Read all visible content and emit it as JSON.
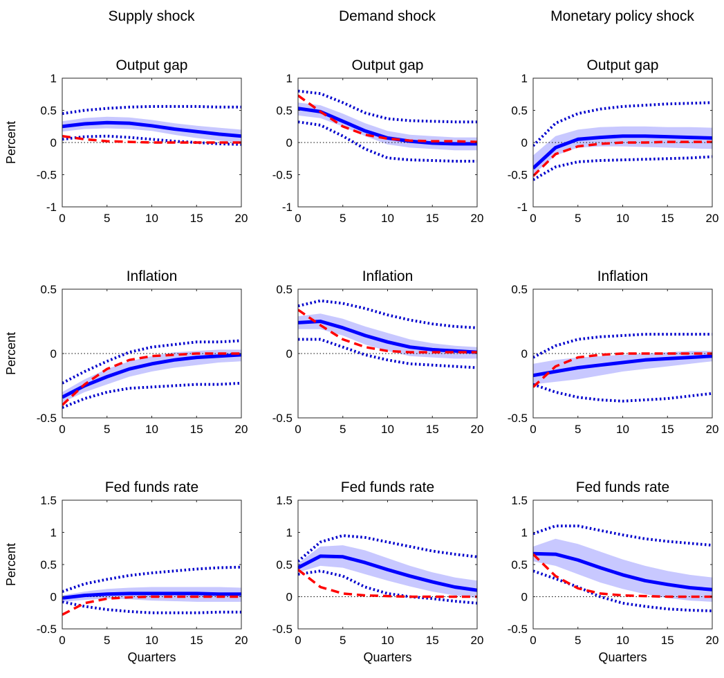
{
  "column_titles": [
    "Supply shock",
    "Demand shock",
    "Monetary policy shock"
  ],
  "colors": {
    "median": "#0000ff",
    "band_fill": "#c8c8ff",
    "dotted_band": "#0000cc",
    "model_response": "#ff0000",
    "zero_line": "#000000"
  },
  "chart_data": [
    {
      "type": "line",
      "title": "Output gap",
      "column": "Supply shock",
      "xlabel": "",
      "ylabel": "Percent",
      "xlim": [
        0,
        20
      ],
      "ylim": [
        -1,
        1
      ],
      "xticks": [
        0,
        5,
        10,
        15,
        20
      ],
      "yticks": [
        -1,
        -0.5,
        0,
        0.5,
        1
      ],
      "x": [
        0,
        2.5,
        5,
        7.5,
        10,
        12.5,
        15,
        17.5,
        20
      ],
      "series": [
        {
          "role": "band_upper",
          "values": [
            0.33,
            0.38,
            0.4,
            0.39,
            0.35,
            0.3,
            0.26,
            0.23,
            0.2
          ]
        },
        {
          "role": "band_lower",
          "values": [
            0.17,
            0.21,
            0.22,
            0.21,
            0.18,
            0.12,
            0.07,
            0.03,
            0.0
          ]
        },
        {
          "role": "median",
          "values": [
            0.25,
            0.29,
            0.31,
            0.3,
            0.26,
            0.21,
            0.17,
            0.13,
            0.1
          ]
        },
        {
          "role": "dotted_upper",
          "values": [
            0.45,
            0.5,
            0.53,
            0.55,
            0.56,
            0.56,
            0.56,
            0.55,
            0.55
          ]
        },
        {
          "role": "dotted_lower",
          "values": [
            0.05,
            0.09,
            0.1,
            0.08,
            0.05,
            0.02,
            0.0,
            -0.02,
            -0.03
          ]
        },
        {
          "role": "model_response",
          "values": [
            0.1,
            0.05,
            0.02,
            0.01,
            0.0,
            0.0,
            0.0,
            0.0,
            0.0
          ]
        }
      ]
    },
    {
      "type": "line",
      "title": "Output gap",
      "column": "Demand shock",
      "xlabel": "",
      "ylabel": "",
      "xlim": [
        0,
        20
      ],
      "ylim": [
        -1,
        1
      ],
      "xticks": [
        0,
        5,
        10,
        15,
        20
      ],
      "yticks": [
        -1,
        -0.5,
        0,
        0.5,
        1
      ],
      "x": [
        0,
        2.5,
        5,
        7.5,
        10,
        12.5,
        15,
        17.5,
        20
      ],
      "series": [
        {
          "role": "band_upper",
          "values": [
            0.62,
            0.58,
            0.45,
            0.3,
            0.18,
            0.12,
            0.1,
            0.08,
            0.08
          ]
        },
        {
          "role": "band_lower",
          "values": [
            0.42,
            0.38,
            0.25,
            0.1,
            -0.03,
            -0.08,
            -0.1,
            -0.12,
            -0.12
          ]
        },
        {
          "role": "median",
          "values": [
            0.53,
            0.48,
            0.33,
            0.18,
            0.07,
            0.02,
            -0.01,
            -0.02,
            -0.02
          ]
        },
        {
          "role": "dotted_upper",
          "values": [
            0.8,
            0.76,
            0.62,
            0.46,
            0.37,
            0.34,
            0.33,
            0.32,
            0.32
          ]
        },
        {
          "role": "dotted_lower",
          "values": [
            0.32,
            0.27,
            0.1,
            -0.1,
            -0.24,
            -0.27,
            -0.28,
            -0.29,
            -0.29
          ]
        },
        {
          "role": "model_response",
          "values": [
            0.73,
            0.48,
            0.25,
            0.12,
            0.06,
            0.03,
            0.02,
            0.02,
            0.01
          ]
        }
      ]
    },
    {
      "type": "line",
      "title": "Output gap",
      "column": "Monetary policy shock",
      "xlabel": "",
      "ylabel": "",
      "xlim": [
        0,
        20
      ],
      "ylim": [
        -1,
        1
      ],
      "xticks": [
        0,
        5,
        10,
        15,
        20
      ],
      "yticks": [
        -1,
        -0.5,
        0,
        0.5,
        1
      ],
      "x": [
        0,
        2.5,
        5,
        7.5,
        10,
        12.5,
        15,
        17.5,
        20
      ],
      "series": [
        {
          "role": "band_upper",
          "values": [
            -0.2,
            0.1,
            0.2,
            0.24,
            0.25,
            0.25,
            0.24,
            0.24,
            0.23
          ]
        },
        {
          "role": "band_lower",
          "values": [
            -0.5,
            -0.2,
            -0.08,
            -0.06,
            -0.06,
            -0.07,
            -0.08,
            -0.09,
            -0.1
          ]
        },
        {
          "role": "median",
          "values": [
            -0.4,
            -0.08,
            0.05,
            0.08,
            0.1,
            0.1,
            0.09,
            0.08,
            0.07
          ]
        },
        {
          "role": "dotted_upper",
          "values": [
            -0.05,
            0.3,
            0.45,
            0.52,
            0.56,
            0.58,
            0.6,
            0.61,
            0.62
          ]
        },
        {
          "role": "dotted_lower",
          "values": [
            -0.58,
            -0.38,
            -0.3,
            -0.28,
            -0.27,
            -0.26,
            -0.25,
            -0.24,
            -0.22
          ]
        },
        {
          "role": "model_response",
          "values": [
            -0.52,
            -0.18,
            -0.06,
            -0.02,
            0.0,
            0.0,
            0.01,
            0.01,
            0.01
          ]
        }
      ]
    },
    {
      "type": "line",
      "title": "Inflation",
      "column": "Supply shock",
      "xlabel": "",
      "ylabel": "Percent",
      "xlim": [
        0,
        20
      ],
      "ylim": [
        -0.5,
        0.5
      ],
      "xticks": [
        0,
        5,
        10,
        15,
        20
      ],
      "yticks": [
        -0.5,
        0,
        0.5
      ],
      "x": [
        0,
        2.5,
        5,
        7.5,
        10,
        12.5,
        15,
        17.5,
        20
      ],
      "series": [
        {
          "role": "band_upper",
          "values": [
            -0.3,
            -0.2,
            -0.12,
            -0.06,
            -0.02,
            0.01,
            0.02,
            0.03,
            0.03
          ]
        },
        {
          "role": "band_lower",
          "values": [
            -0.38,
            -0.3,
            -0.24,
            -0.18,
            -0.14,
            -0.11,
            -0.09,
            -0.07,
            -0.06
          ]
        },
        {
          "role": "median",
          "values": [
            -0.34,
            -0.25,
            -0.18,
            -0.12,
            -0.08,
            -0.05,
            -0.03,
            -0.02,
            -0.01
          ]
        },
        {
          "role": "dotted_upper",
          "values": [
            -0.23,
            -0.14,
            -0.06,
            0.01,
            0.05,
            0.07,
            0.09,
            0.09,
            0.1
          ]
        },
        {
          "role": "dotted_lower",
          "values": [
            -0.42,
            -0.35,
            -0.3,
            -0.27,
            -0.26,
            -0.25,
            -0.24,
            -0.24,
            -0.23
          ]
        },
        {
          "role": "model_response",
          "values": [
            -0.4,
            -0.24,
            -0.12,
            -0.05,
            -0.02,
            -0.01,
            0.0,
            0.0,
            0.0
          ]
        }
      ]
    },
    {
      "type": "line",
      "title": "Inflation",
      "column": "Demand shock",
      "xlabel": "",
      "ylabel": "",
      "xlim": [
        0,
        20
      ],
      "ylim": [
        -0.5,
        0.5
      ],
      "xticks": [
        0,
        5,
        10,
        15,
        20
      ],
      "yticks": [
        -0.5,
        0,
        0.5
      ],
      "x": [
        0,
        2.5,
        5,
        7.5,
        10,
        12.5,
        15,
        17.5,
        20
      ],
      "series": [
        {
          "role": "band_upper",
          "values": [
            0.29,
            0.31,
            0.27,
            0.21,
            0.16,
            0.11,
            0.08,
            0.06,
            0.05
          ]
        },
        {
          "role": "band_lower",
          "values": [
            0.19,
            0.19,
            0.14,
            0.07,
            0.02,
            -0.02,
            -0.03,
            -0.04,
            -0.04
          ]
        },
        {
          "role": "median",
          "values": [
            0.24,
            0.25,
            0.2,
            0.14,
            0.09,
            0.05,
            0.03,
            0.02,
            0.01
          ]
        },
        {
          "role": "dotted_upper",
          "values": [
            0.37,
            0.41,
            0.39,
            0.35,
            0.3,
            0.26,
            0.23,
            0.21,
            0.2
          ]
        },
        {
          "role": "dotted_lower",
          "values": [
            0.11,
            0.11,
            0.05,
            -0.01,
            -0.05,
            -0.08,
            -0.09,
            -0.1,
            -0.11
          ]
        },
        {
          "role": "model_response",
          "values": [
            0.34,
            0.22,
            0.11,
            0.05,
            0.02,
            0.01,
            0.01,
            0.01,
            0.01
          ]
        }
      ]
    },
    {
      "type": "line",
      "title": "Inflation",
      "column": "Monetary policy shock",
      "xlabel": "",
      "ylabel": "",
      "xlim": [
        0,
        20
      ],
      "ylim": [
        -0.5,
        0.5
      ],
      "xticks": [
        0,
        5,
        10,
        15,
        20
      ],
      "yticks": [
        -0.5,
        0,
        0.5
      ],
      "x": [
        0,
        2.5,
        5,
        7.5,
        10,
        12.5,
        15,
        17.5,
        20
      ],
      "series": [
        {
          "role": "band_upper",
          "values": [
            -0.08,
            -0.05,
            -0.03,
            -0.02,
            -0.01,
            0.0,
            0.01,
            0.02,
            0.02
          ]
        },
        {
          "role": "band_lower",
          "values": [
            -0.24,
            -0.22,
            -0.2,
            -0.17,
            -0.14,
            -0.12,
            -0.1,
            -0.08,
            -0.06
          ]
        },
        {
          "role": "median",
          "values": [
            -0.17,
            -0.14,
            -0.11,
            -0.09,
            -0.07,
            -0.05,
            -0.04,
            -0.03,
            -0.02
          ]
        },
        {
          "role": "dotted_upper",
          "values": [
            -0.03,
            0.06,
            0.11,
            0.13,
            0.14,
            0.15,
            0.15,
            0.15,
            0.15
          ]
        },
        {
          "role": "dotted_lower",
          "values": [
            -0.24,
            -0.3,
            -0.34,
            -0.36,
            -0.37,
            -0.36,
            -0.35,
            -0.33,
            -0.31
          ]
        },
        {
          "role": "model_response",
          "values": [
            -0.26,
            -0.1,
            -0.03,
            -0.01,
            0.0,
            0.0,
            0.0,
            0.0,
            0.0
          ]
        }
      ]
    },
    {
      "type": "line",
      "title": "Fed funds rate",
      "column": "Supply shock",
      "xlabel": "Quarters",
      "ylabel": "Percent",
      "xlim": [
        0,
        20
      ],
      "ylim": [
        -0.5,
        1.5
      ],
      "xticks": [
        0,
        5,
        10,
        15,
        20
      ],
      "yticks": [
        -0.5,
        0,
        0.5,
        1,
        1.5
      ],
      "x": [
        0,
        2.5,
        5,
        7.5,
        10,
        12.5,
        15,
        17.5,
        20
      ],
      "series": [
        {
          "role": "band_upper",
          "values": [
            0.02,
            0.08,
            0.12,
            0.14,
            0.15,
            0.15,
            0.15,
            0.15,
            0.14
          ]
        },
        {
          "role": "band_lower",
          "values": [
            -0.08,
            -0.05,
            -0.03,
            -0.04,
            -0.06,
            -0.07,
            -0.08,
            -0.08,
            -0.08
          ]
        },
        {
          "role": "median",
          "values": [
            -0.02,
            0.02,
            0.04,
            0.05,
            0.05,
            0.05,
            0.05,
            0.04,
            0.04
          ]
        },
        {
          "role": "dotted_upper",
          "values": [
            0.08,
            0.2,
            0.27,
            0.33,
            0.37,
            0.4,
            0.43,
            0.45,
            0.46
          ]
        },
        {
          "role": "dotted_lower",
          "values": [
            -0.08,
            -0.15,
            -0.2,
            -0.23,
            -0.25,
            -0.25,
            -0.25,
            -0.24,
            -0.24
          ]
        },
        {
          "role": "model_response",
          "values": [
            -0.28,
            -0.1,
            -0.03,
            -0.01,
            0.0,
            0.0,
            0.0,
            0.0,
            0.0
          ]
        }
      ]
    },
    {
      "type": "line",
      "title": "Fed funds rate",
      "column": "Demand shock",
      "xlabel": "Quarters",
      "ylabel": "",
      "xlim": [
        0,
        20
      ],
      "ylim": [
        -0.5,
        1.5
      ],
      "xticks": [
        0,
        5,
        10,
        15,
        20
      ],
      "yticks": [
        -0.5,
        0,
        0.5,
        1,
        1.5
      ],
      "x": [
        0,
        2.5,
        5,
        7.5,
        10,
        12.5,
        15,
        17.5,
        20
      ],
      "series": [
        {
          "role": "band_upper",
          "values": [
            0.52,
            0.78,
            0.8,
            0.72,
            0.6,
            0.48,
            0.38,
            0.3,
            0.25
          ]
        },
        {
          "role": "band_lower",
          "values": [
            0.38,
            0.48,
            0.45,
            0.35,
            0.25,
            0.16,
            0.08,
            0.02,
            -0.02
          ]
        },
        {
          "role": "median",
          "values": [
            0.45,
            0.63,
            0.62,
            0.53,
            0.42,
            0.32,
            0.23,
            0.15,
            0.1
          ]
        },
        {
          "role": "dotted_upper",
          "values": [
            0.55,
            0.85,
            0.95,
            0.92,
            0.85,
            0.78,
            0.71,
            0.66,
            0.62
          ]
        },
        {
          "role": "dotted_lower",
          "values": [
            0.35,
            0.4,
            0.32,
            0.15,
            0.05,
            0.0,
            -0.03,
            -0.07,
            -0.1
          ]
        },
        {
          "role": "model_response",
          "values": [
            0.42,
            0.15,
            0.05,
            0.02,
            0.01,
            0.0,
            0.0,
            0.0,
            0.0
          ]
        }
      ]
    },
    {
      "type": "line",
      "title": "Fed funds rate",
      "column": "Monetary policy shock",
      "xlabel": "Quarters",
      "ylabel": "",
      "xlim": [
        0,
        20
      ],
      "ylim": [
        -0.5,
        1.5
      ],
      "xticks": [
        0,
        5,
        10,
        15,
        20
      ],
      "yticks": [
        -0.5,
        0,
        0.5,
        1,
        1.5
      ],
      "x": [
        0,
        2.5,
        5,
        7.5,
        10,
        12.5,
        15,
        17.5,
        20
      ],
      "series": [
        {
          "role": "band_upper",
          "values": [
            0.78,
            0.9,
            0.82,
            0.7,
            0.58,
            0.48,
            0.4,
            0.34,
            0.3
          ]
        },
        {
          "role": "band_lower",
          "values": [
            0.55,
            0.48,
            0.35,
            0.22,
            0.12,
            0.04,
            -0.02,
            -0.06,
            -0.08
          ]
        },
        {
          "role": "median",
          "values": [
            0.67,
            0.66,
            0.57,
            0.45,
            0.34,
            0.25,
            0.19,
            0.14,
            0.11
          ]
        },
        {
          "role": "dotted_upper",
          "values": [
            0.98,
            1.1,
            1.1,
            1.03,
            0.96,
            0.9,
            0.86,
            0.83,
            0.8
          ]
        },
        {
          "role": "dotted_lower",
          "values": [
            0.4,
            0.28,
            0.15,
            0.0,
            -0.1,
            -0.15,
            -0.19,
            -0.21,
            -0.22
          ]
        },
        {
          "role": "model_response",
          "values": [
            0.66,
            0.32,
            0.13,
            0.05,
            0.02,
            0.01,
            0.0,
            0.0,
            0.0
          ]
        }
      ]
    }
  ]
}
